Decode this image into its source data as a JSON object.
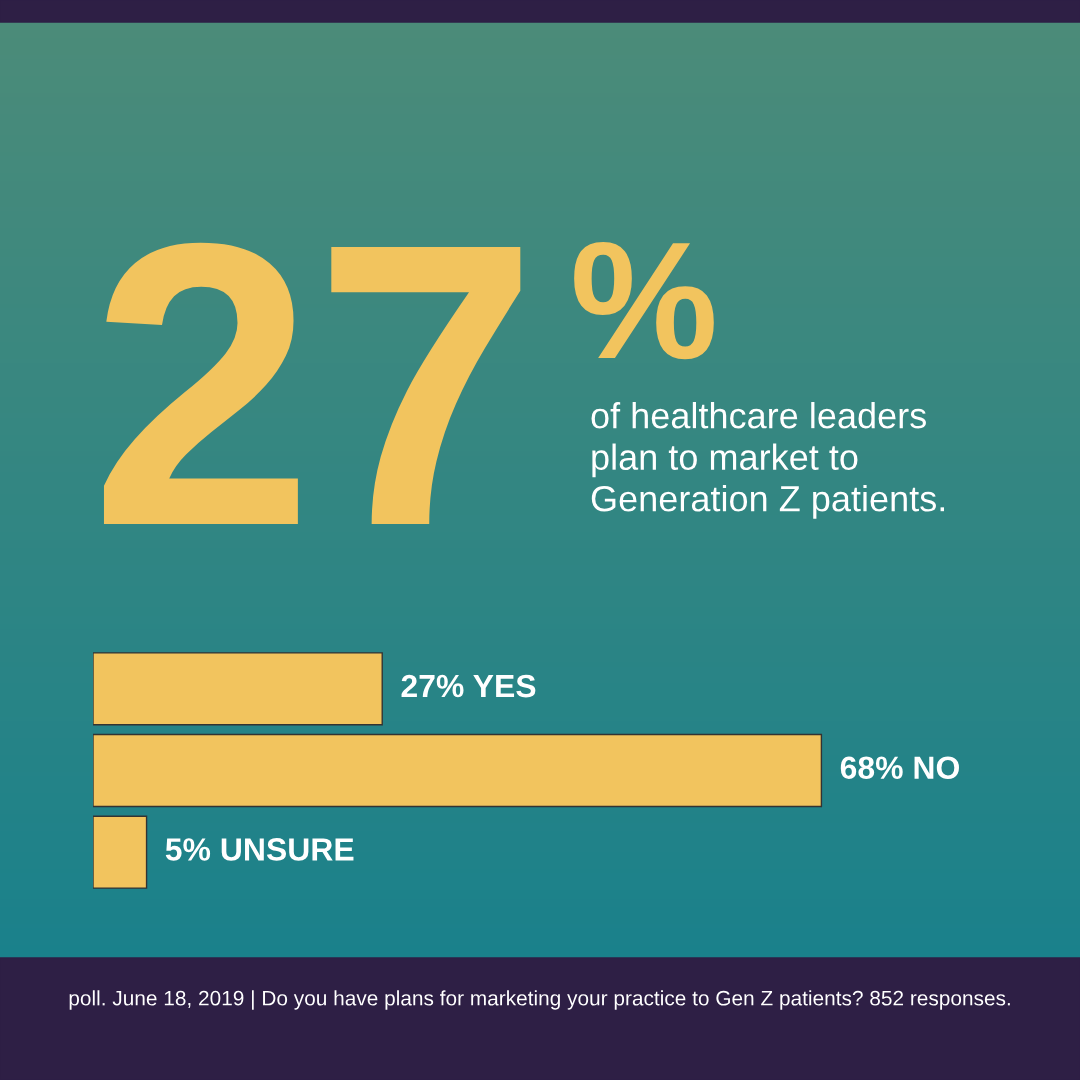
{
  "chart_data": {
    "type": "bar",
    "orientation": "horizontal",
    "title": "27%",
    "subtitle": "of healthcare leaders\nplan to market to\nGeneration Z patients.",
    "categories": [
      null,
      null,
      null
    ],
    "values": [
      27,
      68,
      5
    ],
    "color": "#f2c45e",
    "value_labels": [
      "27% YES",
      "68% NO",
      "5% UNSURE"
    ],
    "annotations": [
      "poll. June 18, 2019 | Do you have plans for marketing your practice to Gen Z patients? 852 responses."
    ]
  }
}
